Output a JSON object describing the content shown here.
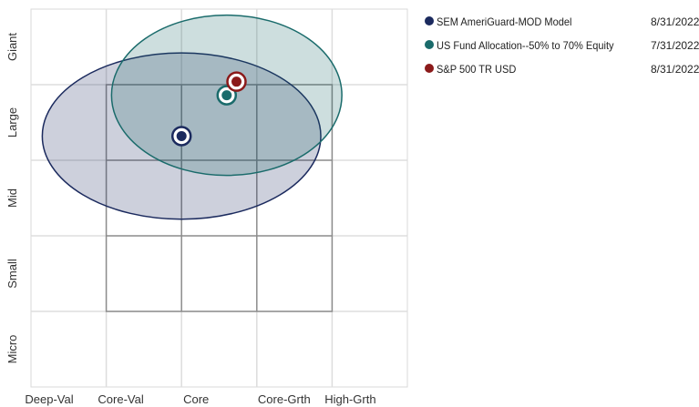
{
  "chart_data": {
    "type": "scatter",
    "title": "",
    "x_axis": {
      "labels": [
        "Deep-Val",
        "Core-Val",
        "Core",
        "Core-Grth",
        "High-Grth"
      ]
    },
    "y_axis": {
      "labels": [
        "Micro",
        "Small",
        "Mid",
        "Large",
        "Giant"
      ]
    },
    "style_box_columns": 3,
    "style_box_rows": 3,
    "series": [
      {
        "name": "SEM AmeriGuard-MOD Model",
        "date": "8/31/2022",
        "color": "#1b2a5e",
        "centroid": {
          "x": 2.0,
          "y": 3.32
        },
        "ellipse": {
          "x_radius": 1.85,
          "y_radius": 1.1
        }
      },
      {
        "name": "US Fund Allocation--50% to 70% Equity",
        "date": "7/31/2022",
        "color": "#1a6b6b",
        "centroid": {
          "x": 2.6,
          "y": 3.86
        },
        "ellipse": {
          "x_radius": 1.53,
          "y_radius": 1.06
        }
      },
      {
        "name": "S&P 500 TR USD",
        "date": "8/31/2022",
        "color": "#8b1a1a",
        "centroid": {
          "x": 2.73,
          "y": 4.04
        }
      }
    ]
  }
}
